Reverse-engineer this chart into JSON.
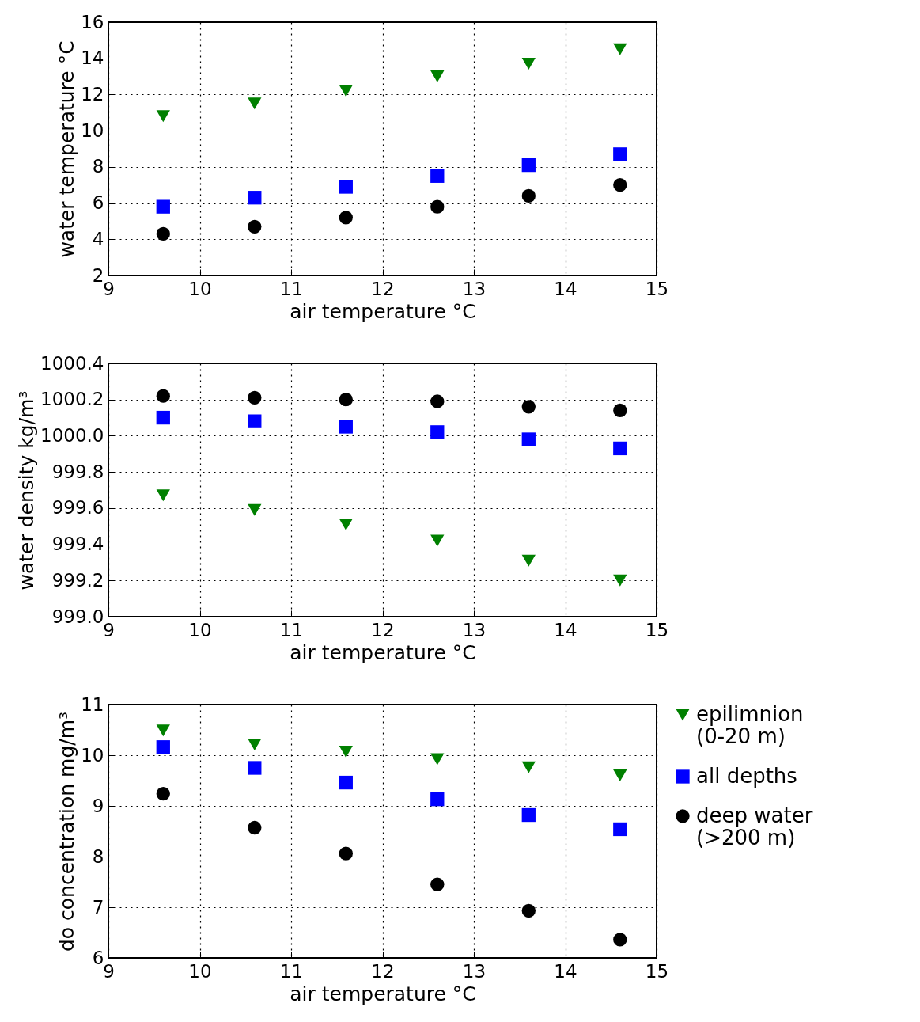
{
  "chart_data": [
    {
      "type": "scatter",
      "xlabel": "air temperature °C",
      "ylabel": "water temperature °C",
      "xlim": [
        9,
        15
      ],
      "xticks": [
        9,
        10,
        11,
        12,
        13,
        14,
        15
      ],
      "ylim": [
        2,
        16
      ],
      "yticks": [
        2,
        4,
        6,
        8,
        10,
        12,
        14,
        16
      ],
      "grid": true,
      "legend": false,
      "x": [
        9.6,
        10.6,
        11.6,
        12.6,
        13.6,
        14.6
      ],
      "series": [
        {
          "color": "#008000",
          "marker": "triangle",
          "values": [
            10.8,
            11.5,
            12.2,
            13.0,
            13.7,
            14.5
          ]
        },
        {
          "color": "#0000ff",
          "marker": "square",
          "values": [
            5.8,
            6.3,
            6.9,
            7.5,
            8.1,
            8.7
          ]
        },
        {
          "color": "#000000",
          "marker": "circle",
          "values": [
            4.3,
            4.7,
            5.2,
            5.8,
            6.4,
            7.0
          ]
        }
      ]
    },
    {
      "type": "scatter",
      "xlabel": "air temperature °C",
      "ylabel": "water density kg/m³",
      "xlim": [
        9,
        15
      ],
      "xticks": [
        9,
        10,
        11,
        12,
        13,
        14,
        15
      ],
      "ylim": [
        999.0,
        1000.4
      ],
      "yticks": [
        {
          "value": 999.0,
          "label": "999.0"
        },
        999.2,
        999.4,
        999.6,
        999.8,
        {
          "value": 1000.0,
          "label": "1000.0"
        },
        1000.2,
        1000.4
      ],
      "grid": true,
      "legend": false,
      "x": [
        9.6,
        10.6,
        11.6,
        12.6,
        13.6,
        14.6
      ],
      "series": [
        {
          "color": "#008000",
          "marker": "triangle",
          "values": [
            999.67,
            999.59,
            999.51,
            999.42,
            999.31,
            999.2
          ]
        },
        {
          "color": "#0000ff",
          "marker": "square",
          "values": [
            1000.1,
            1000.08,
            1000.05,
            1000.02,
            999.98,
            999.93
          ]
        },
        {
          "color": "#000000",
          "marker": "circle",
          "values": [
            1000.22,
            1000.21,
            1000.2,
            1000.19,
            1000.16,
            1000.14
          ]
        }
      ]
    },
    {
      "type": "scatter",
      "xlabel": "air temperature °C",
      "ylabel": "do concentration mg/m³",
      "xlim": [
        9,
        15
      ],
      "xticks": [
        9,
        10,
        11,
        12,
        13,
        14,
        15
      ],
      "ylim": [
        6,
        11
      ],
      "yticks": [
        6,
        7,
        8,
        9,
        10,
        11
      ],
      "grid": true,
      "legend": "right",
      "x": [
        9.6,
        10.6,
        11.6,
        12.6,
        13.6,
        14.6
      ],
      "series": [
        {
          "name": "epilimnion\n(0-20 m)",
          "color": "#008000",
          "marker": "triangle",
          "values": [
            10.49,
            10.21,
            10.07,
            9.92,
            9.76,
            9.6
          ]
        },
        {
          "name": "all depths",
          "color": "#0000ff",
          "marker": "square",
          "values": [
            10.16,
            9.75,
            9.46,
            9.13,
            8.82,
            8.54
          ]
        },
        {
          "name": "deep water\n(>200 m)",
          "color": "#000000",
          "marker": "circle",
          "values": [
            9.24,
            8.57,
            8.06,
            7.45,
            6.93,
            6.36
          ]
        }
      ]
    }
  ]
}
